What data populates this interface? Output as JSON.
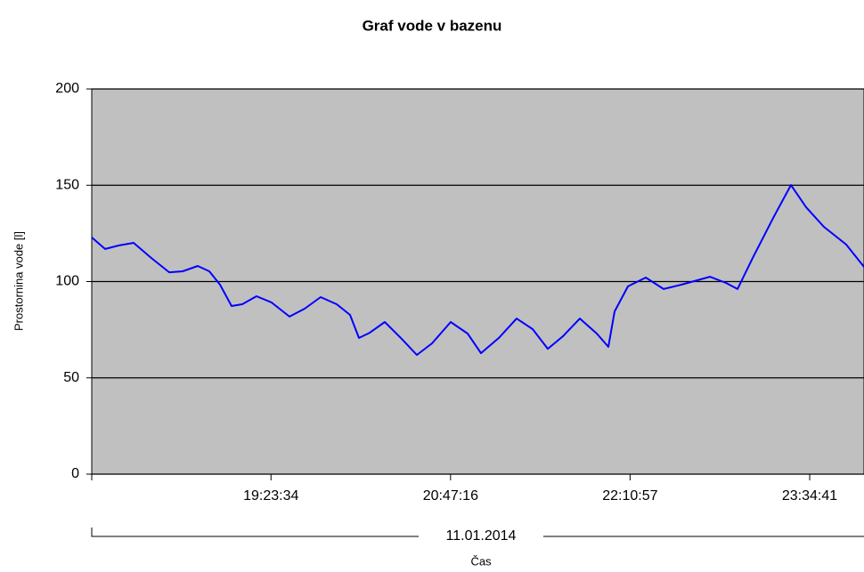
{
  "chart_data": {
    "type": "line",
    "title": "Graf vode v bazenu",
    "y_label": "Prostornina vode [l]",
    "x_label": "Čas",
    "x_group_label": "11.01.2014",
    "x": [
      "18:00:00",
      "18:06:14",
      "18:12:27",
      "18:19:31",
      "18:27:49",
      "18:36:07",
      "18:42:21",
      "18:49:25",
      "18:54:49",
      "18:59:47",
      "19:05:11",
      "19:10:10",
      "19:16:49",
      "19:23:52",
      "19:32:11",
      "19:39:14",
      "19:46:43",
      "19:54:11",
      "20:00:25",
      "20:04:34",
      "20:09:33",
      "20:16:36",
      "20:24:05",
      "20:31:33",
      "20:38:37",
      "20:47:20",
      "20:55:13",
      "21:01:27",
      "21:09:45",
      "21:18:04",
      "21:25:32",
      "21:32:35",
      "21:39:39",
      "21:47:32",
      "21:55:26",
      "22:00:50",
      "22:03:44",
      "22:09:58",
      "22:18:16",
      "22:26:34",
      "22:34:52",
      "22:48:10",
      "22:55:38",
      "23:01:02",
      "23:08:05",
      "23:17:38",
      "23:25:57",
      "23:33:00",
      "23:41:19",
      "23:51:42",
      "23:59:59"
    ],
    "series": [
      {
        "name": "Prostornina vode",
        "color": "#0000ff",
        "values": [
          122.9,
          116.9,
          118.7,
          120.1,
          112.2,
          104.8,
          105.3,
          108.1,
          105.3,
          98.4,
          87.3,
          88.2,
          92.4,
          89.1,
          81.8,
          85.9,
          91.9,
          88.2,
          82.7,
          70.7,
          73.4,
          79.0,
          70.7,
          61.9,
          67.9,
          79.0,
          73.0,
          62.8,
          70.7,
          80.8,
          75.3,
          65.1,
          71.6,
          80.8,
          73.0,
          66.1,
          84.5,
          97.5,
          102.1,
          96.1,
          98.4,
          102.5,
          99.3,
          96.1,
          112.2,
          133.0,
          150.1,
          138.6,
          128.4,
          119.2,
          107.6
        ]
      }
    ],
    "xlim": [
      "18:00:00",
      "24:00:00"
    ],
    "xticks": [
      "19:23:34",
      "20:47:16",
      "22:10:57",
      "23:34:41"
    ],
    "ylim": [
      0,
      200
    ],
    "yticks": [
      0,
      50,
      100,
      150,
      200
    ],
    "grid": true,
    "plot_background": "#c0c0c0"
  }
}
